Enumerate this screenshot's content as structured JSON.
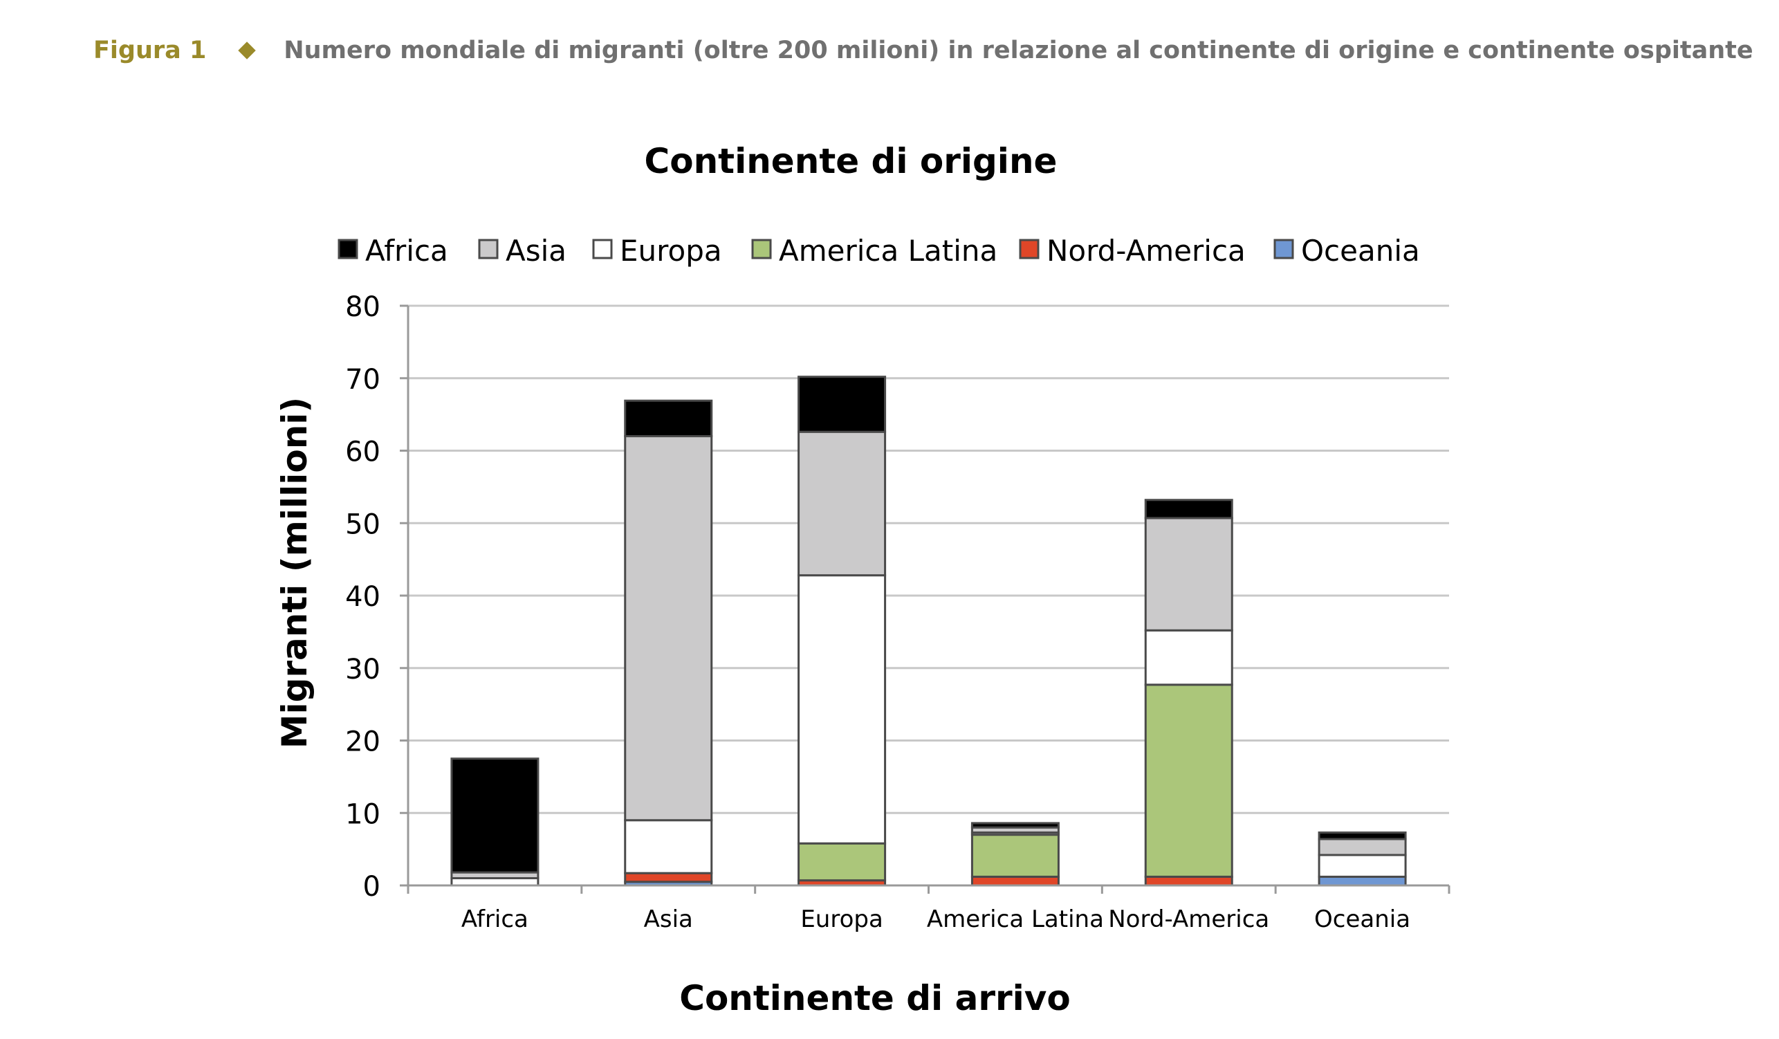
{
  "figure": {
    "label": "Figura 1",
    "caption": "Numero mondiale di migranti (oltre 200 milioni) in relazione al continente di origine e continente ospitante"
  },
  "chart_data": {
    "type": "bar",
    "stacked": true,
    "title": "Continente di origine",
    "xlabel": "Continente di arrivo",
    "ylabel": "Migranti (millioni)",
    "ylim": [
      0,
      80
    ],
    "yticks": [
      0,
      10,
      20,
      30,
      40,
      50,
      60,
      70,
      80
    ],
    "grid": true,
    "legend_position": "top",
    "categories": [
      "Africa",
      "Asia",
      "Europa",
      "America Latina",
      "Nord-America",
      "Oceania"
    ],
    "series": [
      {
        "name": "Oceania",
        "color": "#6f97d3",
        "values": [
          0,
          0.5,
          0,
          0,
          0,
          1.2
        ]
      },
      {
        "name": "Nord-America",
        "color": "#e04628",
        "values": [
          0,
          1.2,
          0.7,
          1.2,
          1.2,
          0
        ]
      },
      {
        "name": "America Latina",
        "color": "#abc67a",
        "values": [
          0,
          0,
          5.1,
          5.8,
          26.5,
          0
        ]
      },
      {
        "name": "Europa",
        "color": "#ffffff",
        "values": [
          1.0,
          7.3,
          37.0,
          0.3,
          7.5,
          3.0
        ]
      },
      {
        "name": "Asia",
        "color": "#cbcacb",
        "values": [
          0.8,
          53.0,
          19.8,
          0.7,
          15.5,
          2.2
        ]
      },
      {
        "name": "Africa",
        "color": "#000000",
        "values": [
          15.7,
          4.9,
          7.6,
          0.6,
          2.5,
          0.9
        ]
      }
    ],
    "legend_order": [
      "Africa",
      "Asia",
      "Europa",
      "America Latina",
      "Nord-America",
      "Oceania"
    ]
  }
}
